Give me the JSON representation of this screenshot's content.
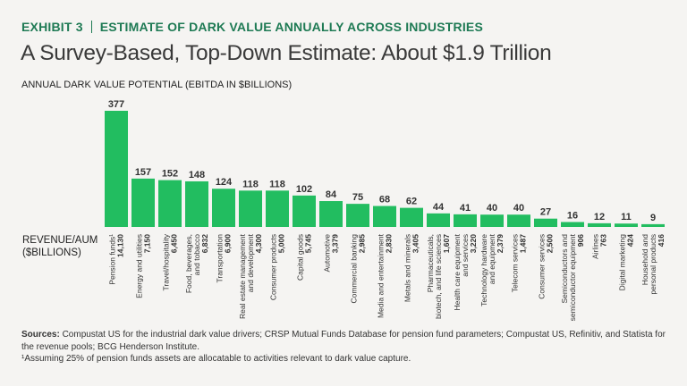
{
  "header": {
    "exhibit_label": "EXHIBIT 3",
    "exhibit_title": "ESTIMATE OF DARK VALUE ANNUALLY ACROSS INDUSTRIES",
    "title": "A Survey-Based, Top-Down Estimate: About $1.9 Trillion",
    "subtitle": "ANNUAL DARK VALUE POTENTIAL (EBITDA IN $BILLIONS)"
  },
  "revenue_label": {
    "line1": "REVENUE/AUM",
    "line2": "($BILLIONS)"
  },
  "colors": {
    "bar": "#22bd60",
    "accent": "#1e7a54",
    "background": "#f5f4f2"
  },
  "chart_data": {
    "type": "bar",
    "title": "ANNUAL DARK VALUE POTENTIAL (EBITDA IN $BILLIONS)",
    "xlabel": "",
    "ylabel": "Annual dark value potential (EBITDA, $B)",
    "ylim": [
      0,
      377
    ],
    "grid": false,
    "legend": "none",
    "categories": [
      {
        "name_lines": [
          "Pension funds¹"
        ],
        "revenue": "14,130"
      },
      {
        "name_lines": [
          "Energy and utilities"
        ],
        "revenue": "7,150"
      },
      {
        "name_lines": [
          "Travel/hospitality"
        ],
        "revenue": "6,450"
      },
      {
        "name_lines": [
          "Food, beverages,",
          "and tobacco"
        ],
        "revenue": "6,832"
      },
      {
        "name_lines": [
          "Transportation"
        ],
        "revenue": "6,900"
      },
      {
        "name_lines": [
          "Real estate management",
          "and development"
        ],
        "revenue": "4,300"
      },
      {
        "name_lines": [
          "Consumer products"
        ],
        "revenue": "5,000"
      },
      {
        "name_lines": [
          "Capital goods"
        ],
        "revenue": "5,745"
      },
      {
        "name_lines": [
          "Automotive"
        ],
        "revenue": "3,379"
      },
      {
        "name_lines": [
          "Commercial banking"
        ],
        "revenue": "2,985"
      },
      {
        "name_lines": [
          "Media and entertainment"
        ],
        "revenue": "2,830"
      },
      {
        "name_lines": [
          "Metals and minerals"
        ],
        "revenue": "3,405"
      },
      {
        "name_lines": [
          "Pharmaceuticals,",
          "biotech, and life sciences"
        ],
        "revenue": "1,607"
      },
      {
        "name_lines": [
          "Health care equipment",
          "and services"
        ],
        "revenue": "3,220"
      },
      {
        "name_lines": [
          "Technology hardware",
          "and equipment"
        ],
        "revenue": "2,379"
      },
      {
        "name_lines": [
          "Telecom services"
        ],
        "revenue": "1,487"
      },
      {
        "name_lines": [
          "Consumer services"
        ],
        "revenue": "2,500"
      },
      {
        "name_lines": [
          "Semiconductors and",
          "semiconductor equipment"
        ],
        "revenue": "906"
      },
      {
        "name_lines": [
          "Airlines"
        ],
        "revenue": "763"
      },
      {
        "name_lines": [
          "Digital marketing"
        ],
        "revenue": "424"
      },
      {
        "name_lines": [
          "Household and",
          "personal products"
        ],
        "revenue": "416"
      }
    ],
    "values": [
      377,
      157,
      152,
      148,
      124,
      118,
      118,
      102,
      84,
      75,
      68,
      62,
      44,
      41,
      40,
      40,
      27,
      16,
      12,
      11,
      9
    ]
  },
  "footer": {
    "sources_label": "Sources:",
    "sources_text": " Compustat US for the industrial dark value drivers; CRSP Mutual Funds Database for pension fund parameters; Compustat US, Refinitiv, and Statista for the revenue pools; BCG Henderson Institute.",
    "footnote": "¹Assuming 25% of pension funds assets are allocatable to activities relevant to dark value capture."
  }
}
